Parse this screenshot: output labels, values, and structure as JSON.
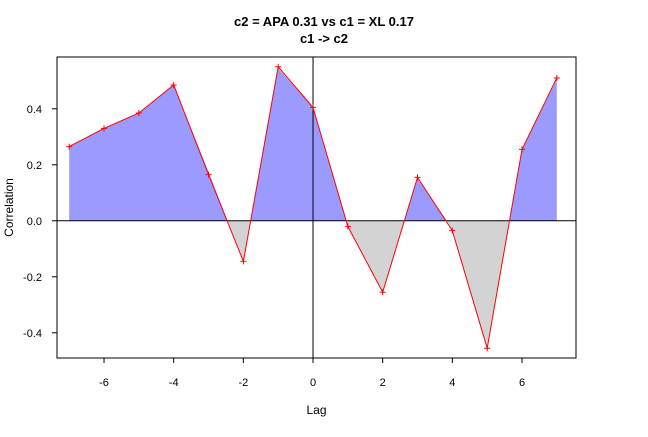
{
  "chart_data": {
    "type": "line",
    "title": "c2 = APA 0.31 vs c1 = XL 0.17",
    "subtitle": "c1 -> c2",
    "xlabel": "Lag",
    "ylabel": "Correlation",
    "xlim": [
      -7.35,
      7.55
    ],
    "ylim": [
      -0.49,
      0.585
    ],
    "x_ticks": [
      -6,
      -4,
      -2,
      0,
      2,
      4,
      6
    ],
    "x_tick_labels": [
      "-6",
      "-4",
      "-2",
      "0",
      "2",
      "4",
      "6"
    ],
    "y_ticks": [
      -0.4,
      -0.2,
      0.0,
      0.2,
      0.4
    ],
    "y_tick_labels": [
      "-0.4",
      "-0.2",
      "0.0",
      "0.2",
      "0.4"
    ],
    "grid": false,
    "legend": "none",
    "positive_fill_color": "#9b9bff",
    "negative_fill_color": "#d3d3d3",
    "line_color": "#ff0000",
    "series": [
      {
        "type": "shaded_area",
        "x": [
          -7,
          -6,
          -5,
          -4,
          -3,
          -2,
          -1,
          0,
          1,
          2,
          3,
          4,
          5,
          6,
          7
        ],
        "values": [
          0.265,
          0.33,
          0.385,
          0.485,
          0.175,
          -0.145,
          0.545,
          0.405,
          -0.02,
          -0.255,
          0.155,
          -0.03,
          -0.455,
          0.255,
          0.505
        ]
      },
      {
        "type": "line_markers",
        "x": [
          -7,
          -6,
          -5,
          -4,
          -3,
          -2,
          -1,
          0,
          1,
          2,
          3,
          4,
          5,
          6,
          7
        ],
        "values": [
          0.265,
          0.33,
          0.385,
          0.485,
          0.165,
          -0.145,
          0.55,
          0.405,
          -0.02,
          -0.255,
          0.155,
          -0.035,
          -0.455,
          0.255,
          0.51
        ]
      }
    ]
  }
}
